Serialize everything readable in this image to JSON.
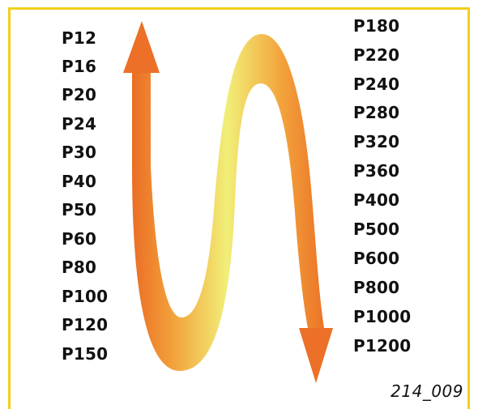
{
  "left_grits": [
    "P12",
    "P16",
    "P20",
    "P24",
    "P30",
    "P40",
    "P50",
    "P60",
    "P80",
    "P100",
    "P120",
    "P150"
  ],
  "right_grits": [
    "P180",
    "P220",
    "P240",
    "P280",
    "P320",
    "P360",
    "P400",
    "P500",
    "P600",
    "P800",
    "P1000",
    "P1200"
  ],
  "figure_code": "214_009",
  "colors": {
    "frame": "#f2cf1a",
    "arrow_orange": "#ea6a24",
    "arrow_mid": "#f4a33a",
    "arrow_yellow": "#f1ef78"
  }
}
